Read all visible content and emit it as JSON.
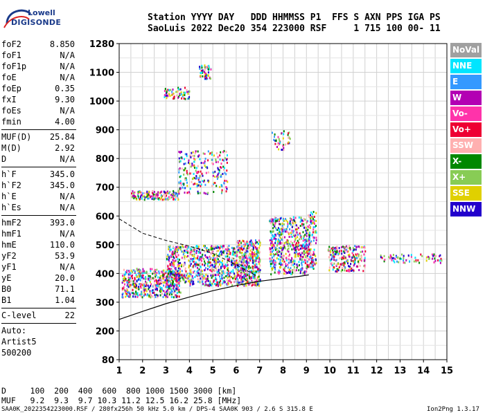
{
  "logo": {
    "line1": "Lowell",
    "line2": "DIGISONDE"
  },
  "header": {
    "line1": "Station YYYY DAY   DDD HHMMSS P1  FFS S AXN PPS IGA PS",
    "line2": "SaoLuis 2022 Dec20 354 223000 RSF     1 715 100 00- 11"
  },
  "params": {
    "group1": [
      {
        "k": "foF2",
        "v": "8.850"
      },
      {
        "k": "foF1",
        "v": "N/A"
      },
      {
        "k": "foF1p",
        "v": "N/A"
      },
      {
        "k": "foE",
        "v": "N/A"
      },
      {
        "k": "foEp",
        "v": "0.35"
      },
      {
        "k": "fxI",
        "v": "9.30"
      },
      {
        "k": "foEs",
        "v": "N/A"
      },
      {
        "k": "fmin",
        "v": "4.00"
      }
    ],
    "group2": [
      {
        "k": "MUF(D)",
        "v": "25.84"
      },
      {
        "k": "M(D)",
        "v": "2.92"
      },
      {
        "k": "D",
        "v": "N/A"
      }
    ],
    "group3": [
      {
        "k": "h`F",
        "v": "345.0"
      },
      {
        "k": "h`F2",
        "v": "345.0"
      },
      {
        "k": "h`E",
        "v": "N/A"
      },
      {
        "k": "h`Es",
        "v": "N/A"
      }
    ],
    "group4": [
      {
        "k": "hmF2",
        "v": "393.0"
      },
      {
        "k": "hmF1",
        "v": "N/A"
      },
      {
        "k": "hmE",
        "v": "110.0"
      },
      {
        "k": "yF2",
        "v": "53.9"
      },
      {
        "k": "yF1",
        "v": "N/A"
      },
      {
        "k": "yE",
        "v": "20.0"
      },
      {
        "k": "B0",
        "v": "71.1"
      },
      {
        "k": "B1",
        "v": "1.04"
      }
    ],
    "clevel": {
      "k": "C-level",
      "v": "22"
    },
    "auto": [
      "Auto:",
      "Artist5",
      "500200"
    ]
  },
  "legend": [
    {
      "label": "NoVal",
      "color": "#a0a0a0"
    },
    {
      "label": "NNE",
      "color": "#00e5ff"
    },
    {
      "label": "E",
      "color": "#3399ff"
    },
    {
      "label": "W",
      "color": "#b300b3"
    },
    {
      "label": "Vo-",
      "color": "#ff33aa"
    },
    {
      "label": "Vo+",
      "color": "#ee0033"
    },
    {
      "label": "SSW",
      "color": "#ffb0b0"
    },
    {
      "label": "X-",
      "color": "#008800"
    },
    {
      "label": "X+",
      "color": "#88cc55"
    },
    {
      "label": "SSE",
      "color": "#e0d000"
    },
    {
      "label": "NNW",
      "color": "#2200cc"
    }
  ],
  "chart_data": {
    "type": "scatter",
    "xlim": [
      1,
      15
    ],
    "ylim_labels": [
      80,
      200,
      300,
      400,
      500,
      600,
      700,
      800,
      900,
      1000,
      1100,
      1280
    ],
    "x_ticks": [
      "1",
      "2",
      "3",
      "4",
      "5",
      "6",
      "7",
      "8",
      "9",
      "10",
      "11",
      "12",
      "13",
      "14",
      "15"
    ],
    "y_ticks": [
      "80",
      "200",
      "300",
      "400",
      "500",
      "600",
      "700",
      "800",
      "900",
      "1000",
      "1100",
      "1280"
    ],
    "grid": true,
    "profile_solid": [
      [
        1,
        240
      ],
      [
        2,
        268
      ],
      [
        3,
        295
      ],
      [
        4,
        318
      ],
      [
        5,
        340
      ],
      [
        6,
        358
      ],
      [
        7,
        373
      ],
      [
        8,
        383
      ],
      [
        8.7,
        390
      ],
      [
        9.1,
        395
      ]
    ],
    "profile_dashed": [
      [
        1,
        590
      ],
      [
        2,
        540
      ],
      [
        3,
        515
      ],
      [
        4,
        495
      ],
      [
        5,
        470
      ],
      [
        6,
        430
      ],
      [
        6.8,
        395
      ]
    ],
    "clusters": [
      {
        "x": [
          1.1,
          3.6
        ],
        "y": [
          320,
          420
        ],
        "n": 520
      },
      {
        "x": [
          3.0,
          6.0
        ],
        "y": [
          360,
          500
        ],
        "n": 700
      },
      {
        "x": [
          6.0,
          7.0
        ],
        "y": [
          360,
          520
        ],
        "n": 420
      },
      {
        "x": [
          7.4,
          9.0
        ],
        "y": [
          400,
          600
        ],
        "n": 520
      },
      {
        "x": [
          9.0,
          9.4
        ],
        "y": [
          420,
          620
        ],
        "n": 140
      },
      {
        "x": [
          9.9,
          11.5
        ],
        "y": [
          410,
          500
        ],
        "n": 220
      },
      {
        "x": [
          12.0,
          14.8
        ],
        "y": [
          440,
          470
        ],
        "n": 70
      },
      {
        "x": [
          1.5,
          3.5
        ],
        "y": [
          660,
          690
        ],
        "n": 150
      },
      {
        "x": [
          3.5,
          5.6
        ],
        "y": [
          680,
          830
        ],
        "n": 240
      },
      {
        "x": [
          2.9,
          4.0
        ],
        "y": [
          1010,
          1050
        ],
        "n": 60
      },
      {
        "x": [
          4.4,
          4.9
        ],
        "y": [
          1080,
          1150
        ],
        "n": 50
      },
      {
        "x": [
          7.5,
          8.3
        ],
        "y": [
          830,
          900
        ],
        "n": 40
      }
    ]
  },
  "footer": {
    "line1": "D     100  200  400  600  800 1000 1500 3000 [km]",
    "line2": "MUF   9.2  9.3  9.7 10.3 11.2 12.5 16.2 25.8 [MHz]",
    "bottom_left": "SAA0K_2022354223000.RSF / 280fx256h 50 kHz 5.0 km / DPS-4 SAA0K 903 / 2.6 S 315.8 E",
    "bottom_right": "Ion2Png 1.3.17"
  }
}
